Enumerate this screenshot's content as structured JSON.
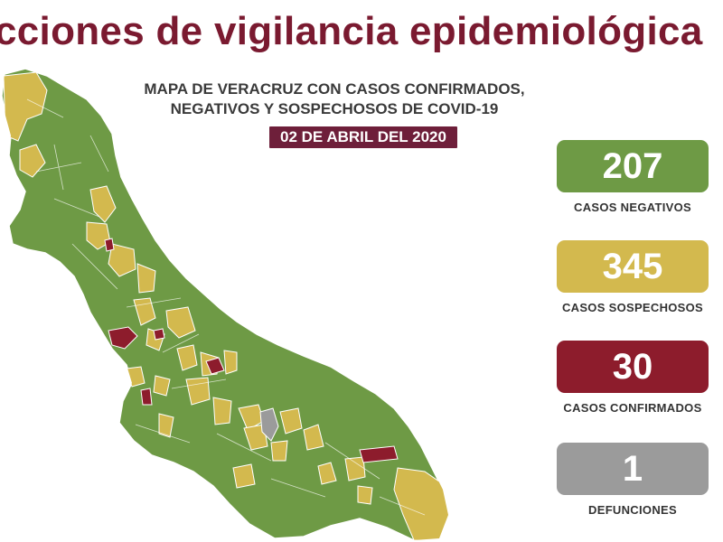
{
  "headline": "cciones de vigilancia epidemiológica",
  "map_title_line1": "MAPA DE VERACRUZ CON CASOS CONFIRMADOS,",
  "map_title_line2": "NEGATIVOS Y SOSPECHOSOS DE COVID-19",
  "date": "02 DE ABRIL DEL 2020",
  "colors": {
    "negative": "#6e9a45",
    "suspected": "#d3b94e",
    "confirmed": "#8d1c2c",
    "deaths": "#9b9b9b",
    "headline": "#7a1a30",
    "date_badge": "#6e1f3a"
  },
  "stats": [
    {
      "value": "207",
      "label": "CASOS NEGATIVOS",
      "color": "#6e9a45"
    },
    {
      "value": "345",
      "label": "CASOS SOSPECHOSOS",
      "color": "#d3b94e"
    },
    {
      "value": "30",
      "label": "CASOS CONFIRMADOS",
      "color": "#8d1c2c"
    },
    {
      "value": "1",
      "label": "DEFUNCIONES",
      "color": "#9b9b9b"
    }
  ]
}
